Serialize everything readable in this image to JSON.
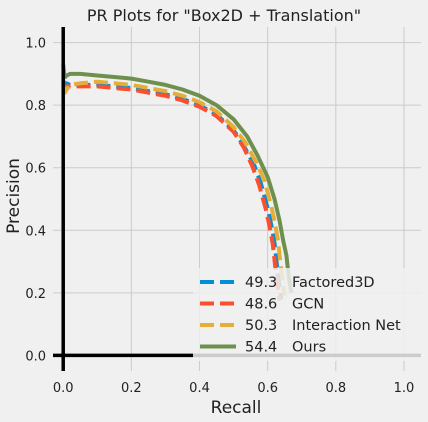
{
  "chart_data": {
    "type": "line",
    "title": "PR Plots for \"Box2D + Translation\"",
    "xlabel": "Recall",
    "ylabel": "Precision",
    "xlim": [
      -0.03,
      1.05
    ],
    "ylim": [
      -0.05,
      1.05
    ],
    "xticks": [
      "0.0",
      "0.2",
      "0.4",
      "0.6",
      "0.8",
      "1.0"
    ],
    "xtick_values": [
      0,
      0.2,
      0.4,
      0.6,
      0.8,
      1.0
    ],
    "yticks": [
      "0.0",
      "0.2",
      "0.4",
      "0.6",
      "0.8",
      "1.0"
    ],
    "ytick_values": [
      0,
      0.2,
      0.4,
      0.6,
      0.8,
      1.0
    ],
    "grid": true,
    "legend_position": "bottom-right",
    "series": [
      {
        "name": "Factored3D",
        "score": "49.3",
        "color": "#008fd5",
        "dash": "dashed",
        "x": [
          0.0,
          0.005,
          0.01,
          0.02,
          0.05,
          0.1,
          0.15,
          0.2,
          0.25,
          0.3,
          0.35,
          0.4,
          0.45,
          0.5,
          0.53,
          0.56,
          0.58,
          0.6,
          0.61,
          0.62,
          0.625,
          0.63,
          0.635,
          0.64
        ],
        "y": [
          0.88,
          0.86,
          0.87,
          0.865,
          0.865,
          0.865,
          0.86,
          0.855,
          0.845,
          0.835,
          0.82,
          0.8,
          0.77,
          0.72,
          0.67,
          0.61,
          0.55,
          0.47,
          0.42,
          0.36,
          0.31,
          0.26,
          0.22,
          0.18
        ]
      },
      {
        "name": "GCN",
        "score": "48.6",
        "color": "#fc4f30",
        "dash": "dashed",
        "x": [
          0.0,
          0.005,
          0.01,
          0.02,
          0.05,
          0.1,
          0.15,
          0.2,
          0.25,
          0.3,
          0.35,
          0.4,
          0.45,
          0.5,
          0.53,
          0.555,
          0.575,
          0.595,
          0.605,
          0.615,
          0.62,
          0.625,
          0.63,
          0.635
        ],
        "y": [
          0.87,
          0.85,
          0.86,
          0.86,
          0.86,
          0.86,
          0.855,
          0.85,
          0.84,
          0.83,
          0.815,
          0.795,
          0.765,
          0.715,
          0.665,
          0.605,
          0.545,
          0.465,
          0.415,
          0.355,
          0.305,
          0.255,
          0.215,
          0.175
        ]
      },
      {
        "name": "Interaction Net",
        "score": "50.3",
        "color": "#e5ae38",
        "dash": "dashed",
        "x": [
          0.0,
          0.005,
          0.01,
          0.02,
          0.05,
          0.1,
          0.15,
          0.2,
          0.25,
          0.3,
          0.35,
          0.4,
          0.45,
          0.5,
          0.535,
          0.565,
          0.59,
          0.61,
          0.62,
          0.63,
          0.635,
          0.64,
          0.645,
          0.65
        ],
        "y": [
          0.86,
          0.84,
          0.85,
          0.865,
          0.87,
          0.875,
          0.87,
          0.865,
          0.855,
          0.845,
          0.83,
          0.81,
          0.78,
          0.73,
          0.68,
          0.62,
          0.56,
          0.48,
          0.43,
          0.37,
          0.32,
          0.27,
          0.23,
          0.19
        ]
      },
      {
        "name": "Ours",
        "score": "54.4",
        "color": "#6d904f",
        "dash": "solid",
        "x": [
          0.0,
          0.003,
          0.006,
          0.01,
          0.02,
          0.05,
          0.1,
          0.15,
          0.2,
          0.25,
          0.3,
          0.35,
          0.4,
          0.45,
          0.5,
          0.54,
          0.57,
          0.6,
          0.62,
          0.635,
          0.645,
          0.655,
          0.66,
          0.665,
          0.67
        ],
        "y": [
          0.93,
          0.9,
          0.89,
          0.895,
          0.9,
          0.9,
          0.895,
          0.89,
          0.885,
          0.875,
          0.865,
          0.85,
          0.83,
          0.8,
          0.755,
          0.7,
          0.64,
          0.57,
          0.5,
          0.43,
          0.37,
          0.32,
          0.27,
          0.23,
          0.2
        ]
      }
    ]
  }
}
